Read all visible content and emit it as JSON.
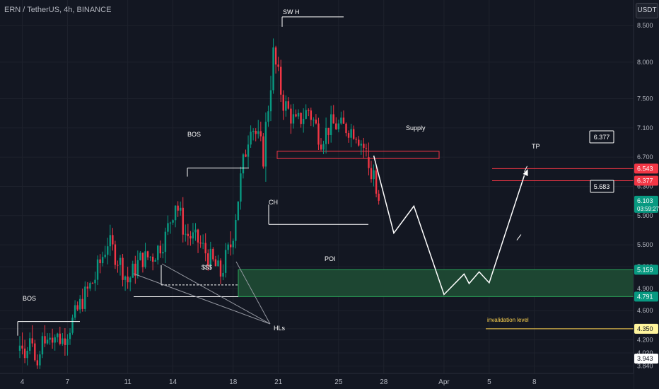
{
  "header": {
    "symbol": "ERN / TetherUS, 4h, BINANCE",
    "currency": "USDT"
  },
  "price_axis": {
    "ticks": [
      {
        "label": "8.500",
        "v": 8.5
      },
      {
        "label": "8.000",
        "v": 8.0
      },
      {
        "label": "7.500",
        "v": 7.5
      },
      {
        "label": "7.100",
        "v": 7.1
      },
      {
        "label": "6.700",
        "v": 6.7
      },
      {
        "label": "6.300",
        "v": 6.3
      },
      {
        "label": "5.900",
        "v": 5.9
      },
      {
        "label": "5.500",
        "v": 5.5
      },
      {
        "label": "5.200",
        "v": 5.2
      },
      {
        "label": "4.900",
        "v": 4.9
      },
      {
        "label": "4.600",
        "v": 4.6
      },
      {
        "label": "4.350",
        "v": 4.35
      },
      {
        "label": "4.200",
        "v": 4.2
      },
      {
        "label": "4.020",
        "v": 4.02
      },
      {
        "label": "3.840",
        "v": 3.84
      }
    ],
    "badges": [
      {
        "label": "6.543",
        "v": 6.543,
        "bg": "#f23645",
        "fg": "#ffffff"
      },
      {
        "label": "6.377",
        "v": 6.377,
        "bg": "#f23645",
        "fg": "#ffffff"
      },
      {
        "label": "5.159",
        "v": 5.159,
        "bg": "#089981",
        "fg": "#ffffff"
      },
      {
        "label": "4.791",
        "v": 4.791,
        "bg": "#089981",
        "fg": "#ffffff"
      },
      {
        "label": "4.350",
        "v": 4.35,
        "bg": "#fff59d",
        "fg": "#131722"
      },
      {
        "label": "3.943",
        "v": 3.943,
        "bg": "#ffffff",
        "fg": "#131722"
      }
    ],
    "current": {
      "price": "6.103",
      "countdown": "03:59:27",
      "v": 6.103,
      "bg": "#089981"
    }
  },
  "time_axis": {
    "labels": [
      {
        "label": "4",
        "i": 1
      },
      {
        "label": "7",
        "i": 19
      },
      {
        "label": "11",
        "i": 43
      },
      {
        "label": "14",
        "i": 61
      },
      {
        "label": "18",
        "i": 85
      },
      {
        "label": "21",
        "i": 103
      },
      {
        "label": "25",
        "i": 127
      },
      {
        "label": "28",
        "i": 145
      },
      {
        "label": "Apr",
        "i": 169
      },
      {
        "label": "5",
        "i": 187
      },
      {
        "label": "8",
        "i": 205
      }
    ]
  },
  "annotations": {
    "bos_left": "BOS",
    "bos_mid": "BOS",
    "swh": "SW H",
    "ch": "CH",
    "supply": "Supply",
    "tp": "TP",
    "poi": "POI",
    "liquidity": "$$$",
    "hls": "HLs",
    "invalidation": "invalidation level",
    "tp_target": "6.377",
    "mid_target": "5.683"
  },
  "colors": {
    "up": "#089981",
    "down": "#f23645",
    "background": "#131722",
    "grid": "#1e222d",
    "poi_fill": "#1e4a33",
    "invalidation": "#ffd54f"
  },
  "chart_data": {
    "type": "candlestick",
    "interval": "4h",
    "date_ticks": [
      "4",
      "7",
      "11",
      "14",
      "18",
      "21",
      "25",
      "28",
      "Apr",
      "5",
      "8"
    ],
    "ohlc_start": [
      [
        4.05,
        4.25,
        3.95,
        4.12
      ],
      [
        4.12,
        4.3,
        4.0,
        4.08
      ],
      [
        4.08,
        4.2,
        3.88,
        3.95
      ],
      [
        3.95,
        4.1,
        3.85,
        4.05
      ],
      [
        4.05,
        4.3,
        4.0,
        4.22
      ],
      [
        4.22,
        4.4,
        4.1,
        4.15
      ],
      [
        4.15,
        4.2,
        3.9,
        3.92
      ],
      [
        3.92,
        4.0,
        3.8,
        3.85
      ],
      [
        3.85,
        4.05,
        3.8,
        4.0
      ],
      [
        4.0,
        4.3,
        3.95,
        4.25
      ],
      [
        4.25,
        4.4,
        4.1,
        4.15
      ]
    ],
    "ohlc_end": [
      [
        6.7,
        6.9,
        6.45,
        6.55
      ],
      [
        6.55,
        6.65,
        6.35,
        6.4
      ],
      [
        6.4,
        6.6,
        6.3,
        6.52
      ],
      [
        6.52,
        6.58,
        6.15,
        6.2
      ],
      [
        6.2,
        6.25,
        6.05,
        6.103
      ]
    ],
    "ohlc_trend": [
      [
        0,
        4.05
      ],
      [
        8,
        3.92
      ],
      [
        12,
        4.3
      ],
      [
        17,
        4.2
      ],
      [
        21,
        4.45
      ],
      [
        25,
        4.75
      ],
      [
        30,
        5.05
      ],
      [
        35,
        5.55
      ],
      [
        40,
        5.25
      ],
      [
        43,
        5.0
      ],
      [
        48,
        5.3
      ],
      [
        53,
        5.35
      ],
      [
        58,
        5.6
      ],
      [
        62,
        6.1
      ],
      [
        66,
        5.65
      ],
      [
        71,
        5.55
      ],
      [
        76,
        5.3
      ],
      [
        80,
        5.1
      ],
      [
        84,
        5.5
      ],
      [
        89,
        6.6
      ],
      [
        92,
        7.2
      ],
      [
        97,
        6.75
      ],
      [
        101,
        8.1
      ],
      [
        105,
        7.45
      ],
      [
        110,
        7.15
      ],
      [
        115,
        7.35
      ],
      [
        120,
        6.95
      ],
      [
        124,
        7.15
      ],
      [
        130,
        7.1
      ],
      [
        134,
        7.05
      ],
      [
        139,
        6.7
      ]
    ],
    "last_price": 6.103,
    "levels": {
      "supply_low": 6.68,
      "supply_high": 6.78,
      "poi_low": 4.791,
      "poi_high": 5.159,
      "tp_low": 6.377,
      "tp_high": 6.543,
      "invalidation": 4.35,
      "swh": 8.62,
      "bos_mid": 6.55,
      "ch": 5.78,
      "bos_left": 4.45,
      "liquidity": 4.95,
      "hl_low": 4.79
    },
    "projection": [
      [
        141,
        6.72
      ],
      [
        149,
        5.66
      ],
      [
        157,
        6.03
      ],
      [
        169,
        4.82
      ],
      [
        177,
        5.1
      ],
      [
        179,
        4.97
      ],
      [
        183,
        5.13
      ],
      [
        187,
        4.98
      ],
      [
        201,
        6.45
      ]
    ],
    "arrow_6377_at": [
      201,
      6.5
    ],
    "arrow_5683_at": [
      198,
      5.68
    ]
  }
}
